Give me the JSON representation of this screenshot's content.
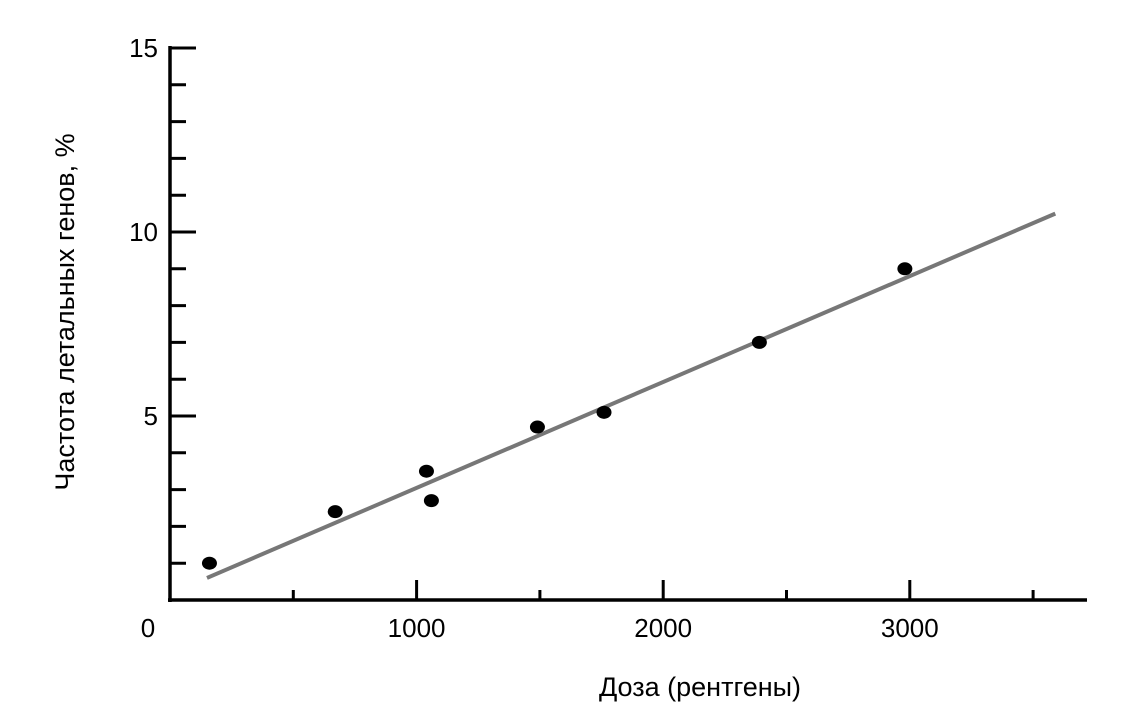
{
  "chart_data": {
    "type": "scatter",
    "title": "",
    "xlabel": "Доза (рентгены)",
    "ylabel": "Частота летальных генов, %",
    "xlim": [
      0,
      3700
    ],
    "ylim": [
      0,
      15
    ],
    "x_ticks_major": [
      1000,
      2000,
      3000
    ],
    "x_tick_labels": [
      "1000",
      "2000",
      "3000"
    ],
    "x_ticks_minor": [
      500,
      1500,
      2500,
      3500
    ],
    "y_ticks_major": [
      5,
      10,
      15
    ],
    "y_tick_labels": [
      "5",
      "10",
      "15"
    ],
    "y_ticks_minor": [
      1,
      2,
      3,
      4,
      6,
      7,
      8,
      9,
      11,
      12,
      13,
      14
    ],
    "origin_label": "0",
    "grid": false,
    "points": [
      {
        "x": 160,
        "y": 1.0
      },
      {
        "x": 670,
        "y": 2.4
      },
      {
        "x": 1040,
        "y": 3.5
      },
      {
        "x": 1060,
        "y": 2.7
      },
      {
        "x": 1490,
        "y": 4.7
      },
      {
        "x": 1760,
        "y": 5.1
      },
      {
        "x": 2390,
        "y": 7.0
      },
      {
        "x": 2980,
        "y": 9.0
      }
    ],
    "fit_line": {
      "x": [
        150,
        3590
      ],
      "y": [
        0.6,
        10.5
      ]
    },
    "colors": {
      "points": "#000000",
      "fit_line": "#777777",
      "axes": "#000000"
    }
  }
}
